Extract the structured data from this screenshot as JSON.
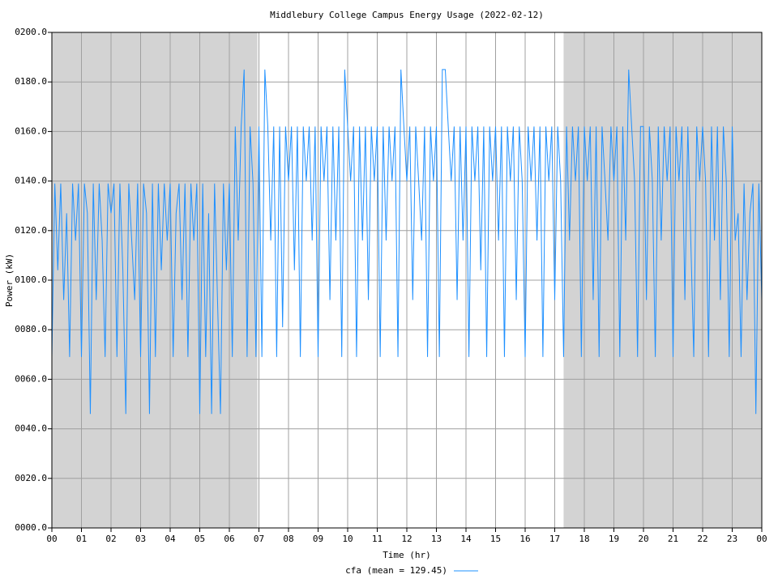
{
  "chart_data": {
    "type": "line",
    "title": "Middlebury College Campus Energy Usage (2022-02-12)",
    "xlabel": "Time (hr)",
    "ylabel": "Power (kW)",
    "xlim": [
      0,
      24
    ],
    "ylim": [
      0,
      200
    ],
    "xticks": [
      {
        "value": 0,
        "label": "00"
      },
      {
        "value": 1,
        "label": "01"
      },
      {
        "value": 2,
        "label": "02"
      },
      {
        "value": 3,
        "label": "03"
      },
      {
        "value": 4,
        "label": "04"
      },
      {
        "value": 5,
        "label": "05"
      },
      {
        "value": 6,
        "label": "06"
      },
      {
        "value": 7,
        "label": "07"
      },
      {
        "value": 8,
        "label": "08"
      },
      {
        "value": 9,
        "label": "09"
      },
      {
        "value": 10,
        "label": "10"
      },
      {
        "value": 11,
        "label": "11"
      },
      {
        "value": 12,
        "label": "12"
      },
      {
        "value": 13,
        "label": "13"
      },
      {
        "value": 14,
        "label": "14"
      },
      {
        "value": 15,
        "label": "15"
      },
      {
        "value": 16,
        "label": "16"
      },
      {
        "value": 17,
        "label": "17"
      },
      {
        "value": 18,
        "label": "18"
      },
      {
        "value": 19,
        "label": "19"
      },
      {
        "value": 20,
        "label": "20"
      },
      {
        "value": 21,
        "label": "21"
      },
      {
        "value": 22,
        "label": "22"
      },
      {
        "value": 23,
        "label": "23"
      },
      {
        "value": 24,
        "label": "00"
      }
    ],
    "yticks": [
      {
        "value": 0,
        "label": "0000.0"
      },
      {
        "value": 20,
        "label": "0020.0"
      },
      {
        "value": 40,
        "label": "0040.0"
      },
      {
        "value": 60,
        "label": "0060.0"
      },
      {
        "value": 80,
        "label": "0080.0"
      },
      {
        "value": 100,
        "label": "0100.0"
      },
      {
        "value": 120,
        "label": "0120.0"
      },
      {
        "value": 140,
        "label": "0140.0"
      },
      {
        "value": 160,
        "label": "0160.0"
      },
      {
        "value": 180,
        "label": "0180.0"
      },
      {
        "value": 200,
        "label": "0200.0"
      }
    ],
    "grid": true,
    "shaded_ranges": [
      [
        0,
        6.95
      ],
      [
        17.3,
        24
      ]
    ],
    "shade_color": "#d3d3d3",
    "legend": "bottom",
    "x": [
      0,
      0.1,
      0.2,
      0.3,
      0.4,
      0.5,
      0.6,
      0.7,
      0.8,
      0.9,
      1,
      1.1,
      1.2,
      1.3,
      1.4,
      1.5,
      1.6,
      1.7,
      1.8,
      1.9,
      2,
      2.1,
      2.2,
      2.3,
      2.4,
      2.5,
      2.6,
      2.7,
      2.8,
      2.9,
      3,
      3.1,
      3.2,
      3.3,
      3.4,
      3.5,
      3.6,
      3.7,
      3.8,
      3.9,
      4,
      4.1,
      4.2,
      4.3,
      4.4,
      4.5,
      4.6,
      4.7,
      4.8,
      4.9,
      5,
      5.1,
      5.2,
      5.3,
      5.4,
      5.5,
      5.6,
      5.7,
      5.8,
      5.9,
      6,
      6.1,
      6.2,
      6.3,
      6.4,
      6.5,
      6.6,
      6.7,
      6.8,
      6.9,
      7,
      7.1,
      7.2,
      7.3,
      7.4,
      7.5,
      7.6,
      7.7,
      7.8,
      7.9,
      8,
      8.1,
      8.2,
      8.3,
      8.4,
      8.5,
      8.6,
      8.7,
      8.8,
      8.9,
      9,
      9.1,
      9.2,
      9.3,
      9.4,
      9.5,
      9.6,
      9.7,
      9.8,
      9.9,
      10,
      10.1,
      10.2,
      10.3,
      10.4,
      10.5,
      10.6,
      10.7,
      10.8,
      10.9,
      11,
      11.1,
      11.2,
      11.3,
      11.4,
      11.5,
      11.6,
      11.7,
      11.8,
      11.9,
      12,
      12.1,
      12.2,
      12.3,
      12.4,
      12.5,
      12.6,
      12.7,
      12.8,
      12.9,
      13,
      13.1,
      13.2,
      13.3,
      13.4,
      13.5,
      13.6,
      13.7,
      13.8,
      13.9,
      14,
      14.1,
      14.2,
      14.3,
      14.4,
      14.5,
      14.6,
      14.7,
      14.8,
      14.9,
      15,
      15.1,
      15.2,
      15.3,
      15.4,
      15.5,
      15.6,
      15.7,
      15.8,
      15.9,
      16,
      16.1,
      16.2,
      16.3,
      16.4,
      16.5,
      16.6,
      16.7,
      16.8,
      16.9,
      17,
      17.1,
      17.2,
      17.3,
      17.4,
      17.5,
      17.6,
      17.7,
      17.8,
      17.9,
      18,
      18.1,
      18.2,
      18.3,
      18.4,
      18.5,
      18.6,
      18.7,
      18.8,
      18.9,
      19,
      19.1,
      19.2,
      19.3,
      19.4,
      19.5,
      19.6,
      19.7,
      19.8,
      19.9,
      20,
      20.1,
      20.2,
      20.3,
      20.4,
      20.5,
      20.6,
      20.7,
      20.8,
      20.9,
      21,
      21.1,
      21.2,
      21.3,
      21.4,
      21.5,
      21.6,
      21.7,
      21.8,
      21.9,
      22,
      22.1,
      22.2,
      22.3,
      22.4,
      22.5,
      22.6,
      22.7,
      22.8,
      22.9,
      23,
      23.1,
      23.2,
      23.3,
      23.4,
      23.5,
      23.6,
      23.7,
      23.8,
      23.9,
      24
    ],
    "series": [
      {
        "name": "cfa (mean = 129.45)",
        "color": "#1e90ff",
        "values": [
          69,
          139,
          104,
          139,
          92,
          127,
          69,
          139,
          116,
          139,
          69,
          139,
          127,
          46,
          139,
          92,
          139,
          116,
          69,
          139,
          127,
          139,
          69,
          139,
          104,
          46,
          139,
          116,
          92,
          139,
          69,
          139,
          127,
          46,
          139,
          69,
          139,
          104,
          139,
          116,
          139,
          69,
          127,
          139,
          92,
          139,
          69,
          139,
          116,
          139,
          46,
          139,
          69,
          127,
          46,
          139,
          92,
          46,
          139,
          104,
          139,
          69,
          162,
          116,
          162,
          185,
          69,
          162,
          139,
          69,
          162,
          69,
          185,
          162,
          116,
          162,
          69,
          162,
          81,
          162,
          140,
          162,
          104,
          162,
          69,
          162,
          140,
          162,
          116,
          162,
          69,
          162,
          140,
          162,
          92,
          162,
          116,
          162,
          69,
          185,
          162,
          140,
          162,
          69,
          162,
          116,
          162,
          92,
          162,
          140,
          162,
          69,
          162,
          116,
          162,
          140,
          162,
          69,
          185,
          162,
          140,
          162,
          92,
          162,
          140,
          116,
          162,
          69,
          162,
          140,
          162,
          69,
          185,
          185,
          162,
          140,
          162,
          92,
          162,
          116,
          162,
          69,
          162,
          140,
          162,
          104,
          162,
          69,
          162,
          140,
          162,
          116,
          162,
          69,
          162,
          140,
          162,
          92,
          162,
          140,
          69,
          162,
          140,
          162,
          116,
          162,
          69,
          162,
          140,
          162,
          92,
          162,
          140,
          69,
          162,
          116,
          162,
          140,
          162,
          69,
          162,
          140,
          162,
          92,
          162,
          69,
          162,
          140,
          116,
          162,
          140,
          162,
          69,
          162,
          116,
          185,
          162,
          140,
          69,
          162,
          162,
          92,
          162,
          140,
          69,
          162,
          116,
          162,
          140,
          162,
          69,
          162,
          140,
          162,
          92,
          162,
          116,
          69,
          162,
          140,
          162,
          140,
          69,
          162,
          116,
          162,
          92,
          162,
          140,
          69,
          162,
          116,
          127,
          69,
          139,
          92,
          127,
          139,
          46,
          139,
          92
        ]
      }
    ]
  }
}
